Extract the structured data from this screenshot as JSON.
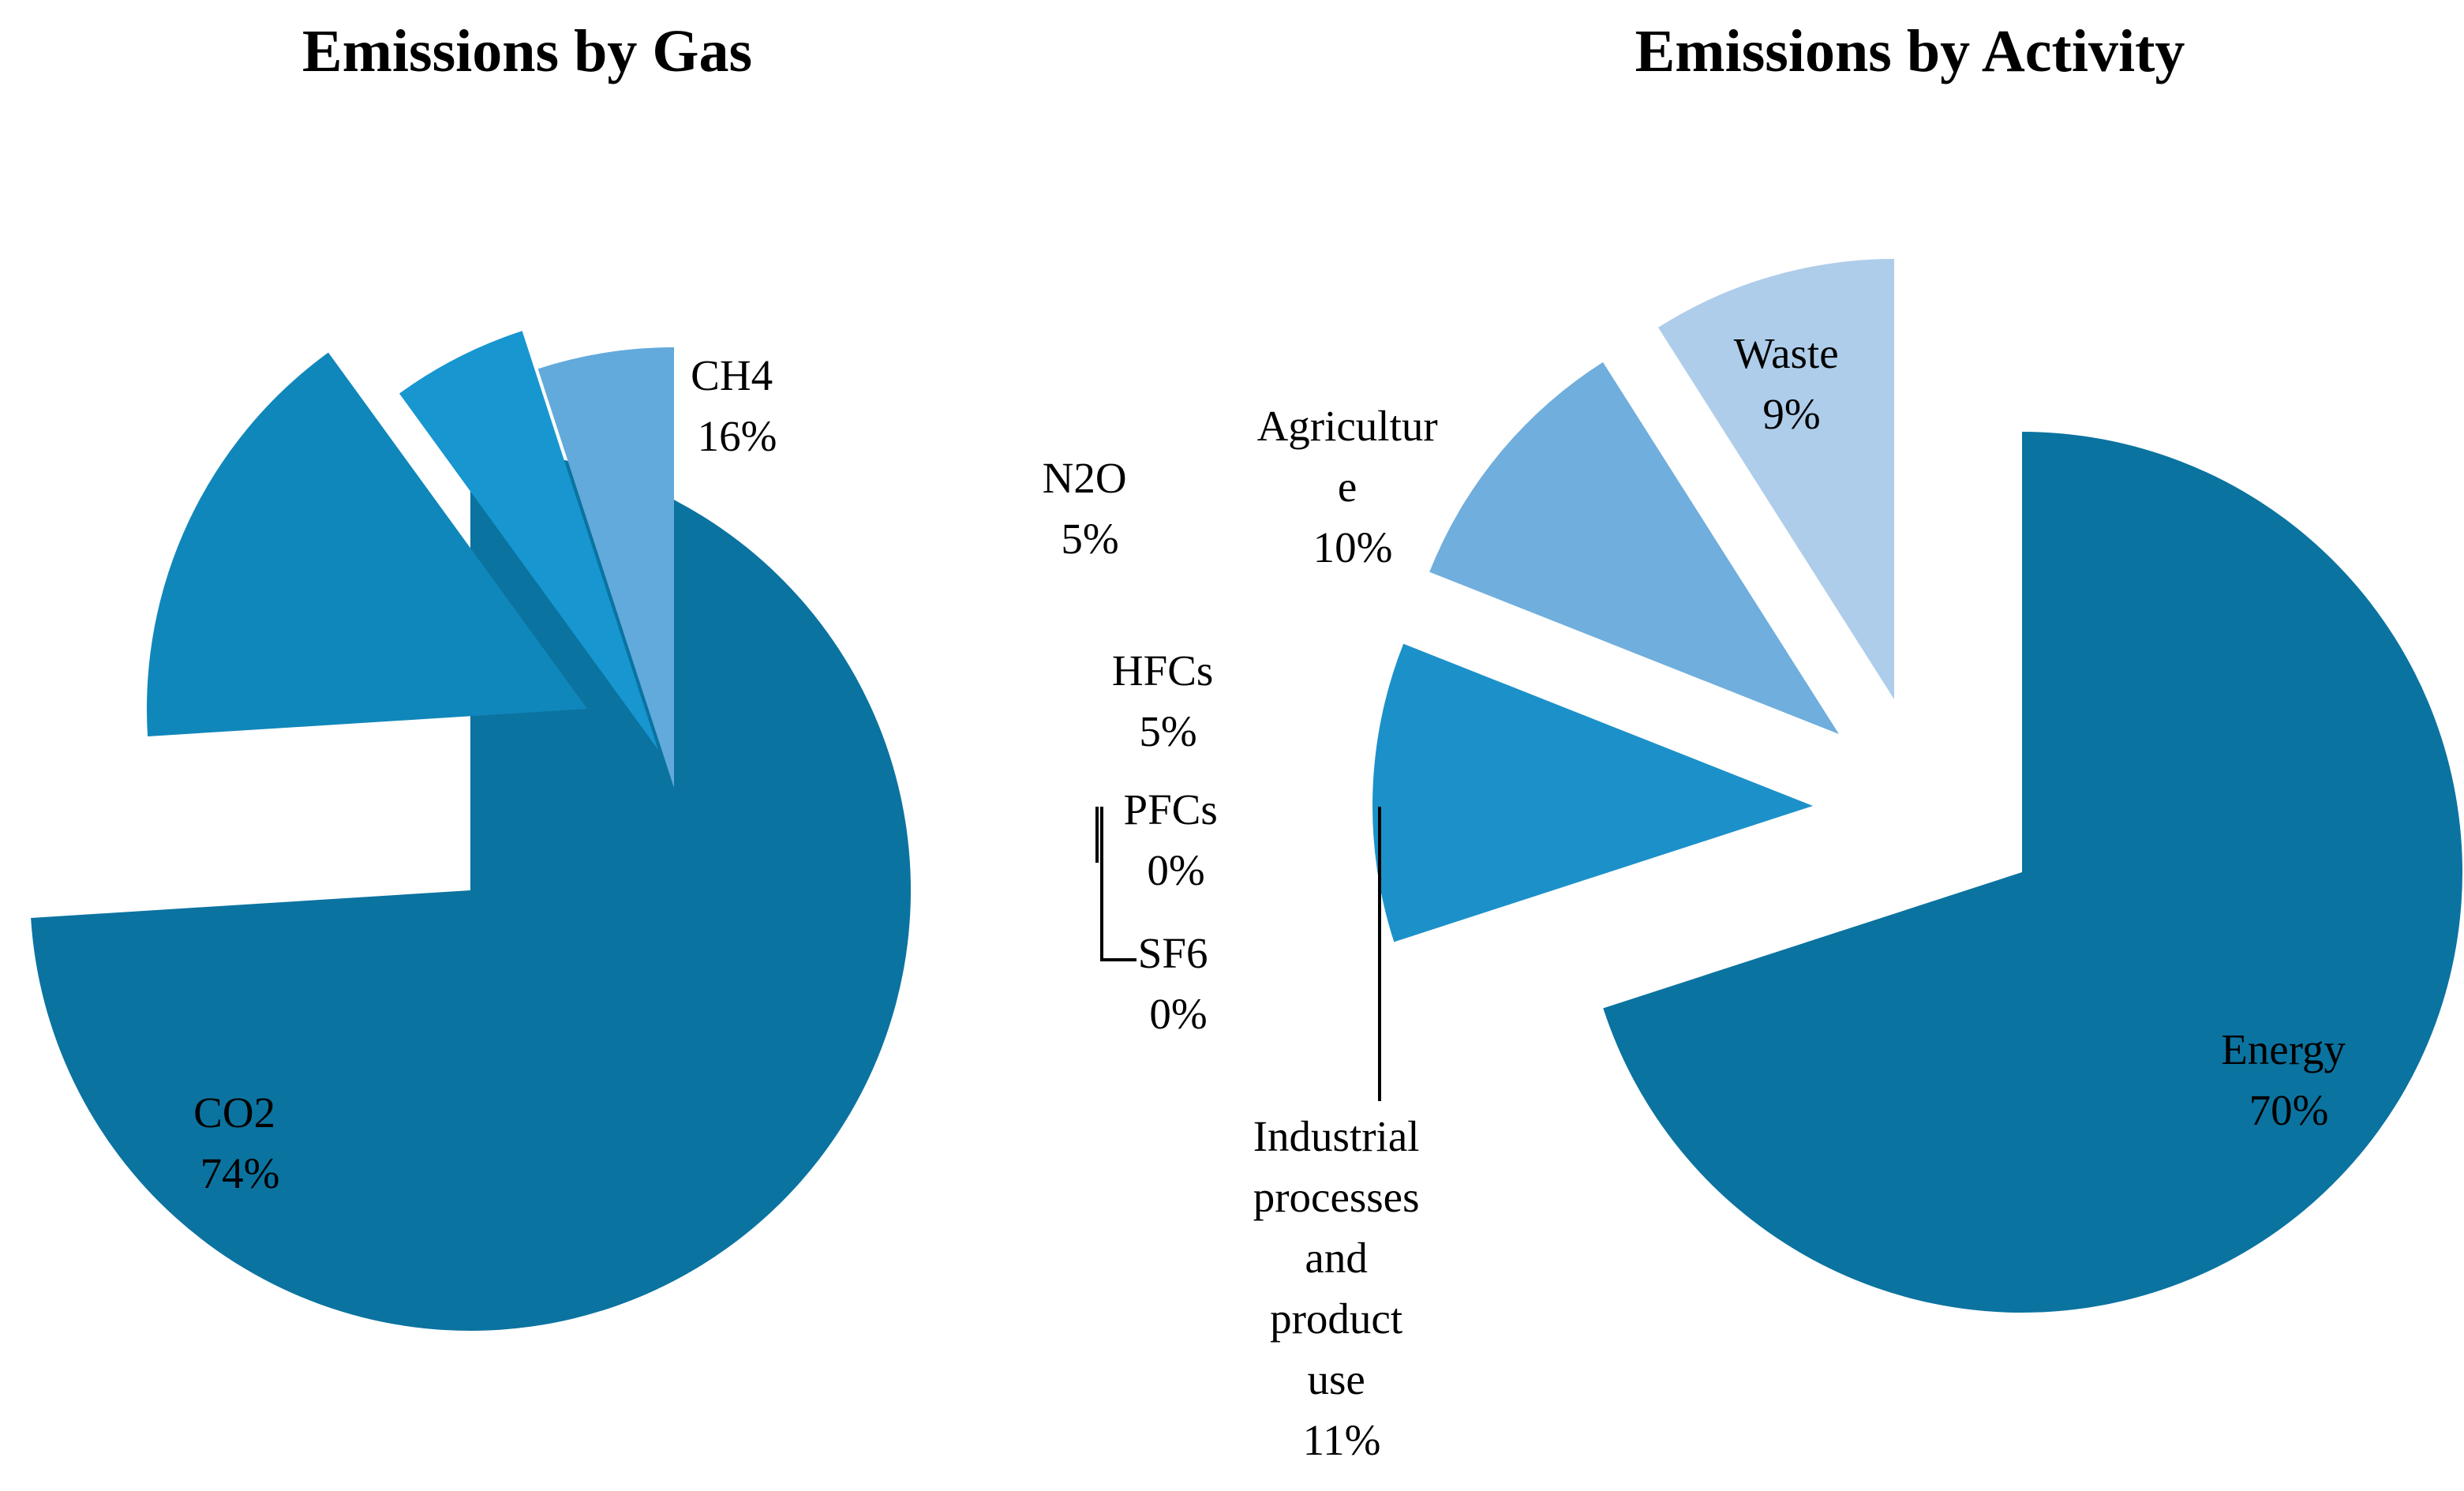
{
  "chart_data": [
    {
      "type": "pie",
      "title": "Emissions by Gas",
      "slices": [
        {
          "label": "CO2",
          "value": 74,
          "display": "74%",
          "color": "#0B73A0"
        },
        {
          "label": "CH4",
          "value": 16,
          "display": "16%",
          "color": "#1087BA"
        },
        {
          "label": "N2O",
          "value": 5,
          "display": "5%",
          "color": "#1796D0"
        },
        {
          "label": "HFCs",
          "value": 5,
          "display": "5%",
          "color": "#62AADC"
        },
        {
          "label": "PFCs",
          "value": 0,
          "display": "0%",
          "color": "#8CC0E6"
        },
        {
          "label": "SF6",
          "value": 0,
          "display": "0%",
          "color": "#B0D0EC"
        }
      ]
    },
    {
      "type": "pie",
      "title": "Emissions by Activity",
      "slices": [
        {
          "label": "Energy",
          "value": 70,
          "display": "70%",
          "color": "#0B73A0"
        },
        {
          "label": "Industrial processes and product use",
          "value": 11,
          "display": "11%",
          "color": "#1C91C9"
        },
        {
          "label": "Agriculture",
          "value": 10,
          "display": "10%",
          "color": "#6FAEDD"
        },
        {
          "label": "Waste",
          "value": 9,
          "display": "9%",
          "color": "#AECDEA"
        }
      ]
    }
  ]
}
